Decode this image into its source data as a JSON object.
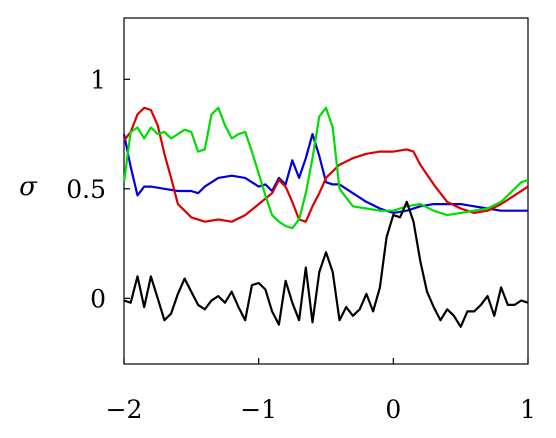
{
  "chart_data": {
    "type": "line",
    "title": "",
    "xlabel": "",
    "ylabel": "σ",
    "xlim": [
      -2,
      1
    ],
    "ylim": [
      -0.3,
      1.28
    ],
    "xticks": [
      -2,
      -1,
      0,
      1
    ],
    "xtick_labels": [
      "−2",
      "−1",
      "0",
      "1"
    ],
    "yticks": [
      0,
      0.5,
      1
    ],
    "ytick_labels": [
      "0",
      "0.5",
      "1"
    ],
    "grid": false,
    "legend": "none",
    "series": [
      {
        "color": "#0000dd",
        "x": [
          -2.0,
          -1.95,
          -1.9,
          -1.85,
          -1.8,
          -1.7,
          -1.6,
          -1.5,
          -1.45,
          -1.4,
          -1.3,
          -1.2,
          -1.1,
          -1.0,
          -0.95,
          -0.9,
          -0.85,
          -0.8,
          -0.75,
          -0.7,
          -0.65,
          -0.6,
          -0.55,
          -0.5,
          -0.45,
          -0.4,
          -0.3,
          -0.2,
          -0.1,
          0.0,
          0.1,
          0.2,
          0.3,
          0.4,
          0.5,
          0.6,
          0.7,
          0.8,
          0.9,
          1.0
        ],
        "y": [
          0.75,
          0.6,
          0.47,
          0.51,
          0.51,
          0.5,
          0.49,
          0.49,
          0.48,
          0.51,
          0.55,
          0.56,
          0.55,
          0.51,
          0.52,
          0.49,
          0.55,
          0.52,
          0.63,
          0.55,
          0.64,
          0.75,
          0.65,
          0.53,
          0.52,
          0.52,
          0.48,
          0.44,
          0.41,
          0.39,
          0.4,
          0.42,
          0.43,
          0.43,
          0.43,
          0.42,
          0.41,
          0.4,
          0.4,
          0.4
        ]
      },
      {
        "color": "#dd0000",
        "x": [
          -2.0,
          -1.95,
          -1.9,
          -1.85,
          -1.8,
          -1.75,
          -1.7,
          -1.65,
          -1.6,
          -1.55,
          -1.5,
          -1.4,
          -1.3,
          -1.2,
          -1.1,
          -1.0,
          -0.9,
          -0.85,
          -0.8,
          -0.75,
          -0.7,
          -0.65,
          -0.6,
          -0.55,
          -0.5,
          -0.4,
          -0.3,
          -0.2,
          -0.1,
          0.0,
          0.1,
          0.15,
          0.2,
          0.3,
          0.4,
          0.5,
          0.6,
          0.7,
          0.8,
          0.9,
          1.0
        ],
        "y": [
          0.72,
          0.76,
          0.84,
          0.87,
          0.86,
          0.79,
          0.66,
          0.55,
          0.43,
          0.4,
          0.37,
          0.35,
          0.36,
          0.35,
          0.38,
          0.43,
          0.48,
          0.54,
          0.51,
          0.44,
          0.36,
          0.35,
          0.42,
          0.48,
          0.55,
          0.61,
          0.64,
          0.66,
          0.67,
          0.67,
          0.68,
          0.67,
          0.61,
          0.52,
          0.44,
          0.41,
          0.39,
          0.4,
          0.43,
          0.47,
          0.51
        ]
      },
      {
        "color": "#00dd00",
        "x": [
          -2.0,
          -1.95,
          -1.9,
          -1.85,
          -1.8,
          -1.75,
          -1.7,
          -1.65,
          -1.6,
          -1.55,
          -1.5,
          -1.45,
          -1.4,
          -1.35,
          -1.3,
          -1.25,
          -1.2,
          -1.15,
          -1.1,
          -1.05,
          -1.0,
          -0.95,
          -0.9,
          -0.85,
          -0.8,
          -0.75,
          -0.7,
          -0.65,
          -0.6,
          -0.55,
          -0.5,
          -0.45,
          -0.4,
          -0.3,
          -0.2,
          -0.1,
          0.0,
          0.1,
          0.2,
          0.3,
          0.35,
          0.4,
          0.5,
          0.6,
          0.7,
          0.8,
          0.9,
          0.95,
          1.0
        ],
        "y": [
          0.53,
          0.76,
          0.78,
          0.73,
          0.78,
          0.75,
          0.76,
          0.73,
          0.75,
          0.77,
          0.76,
          0.67,
          0.68,
          0.84,
          0.87,
          0.79,
          0.73,
          0.75,
          0.76,
          0.67,
          0.57,
          0.47,
          0.38,
          0.35,
          0.33,
          0.32,
          0.36,
          0.48,
          0.64,
          0.83,
          0.87,
          0.78,
          0.5,
          0.42,
          0.41,
          0.4,
          0.4,
          0.42,
          0.43,
          0.4,
          0.39,
          0.38,
          0.39,
          0.4,
          0.41,
          0.44,
          0.5,
          0.53,
          0.54
        ]
      },
      {
        "color": "#000000",
        "x": [
          -2.0,
          -1.95,
          -1.9,
          -1.85,
          -1.8,
          -1.75,
          -1.7,
          -1.65,
          -1.6,
          -1.55,
          -1.5,
          -1.45,
          -1.4,
          -1.35,
          -1.3,
          -1.25,
          -1.2,
          -1.15,
          -1.1,
          -1.05,
          -1.0,
          -0.95,
          -0.9,
          -0.85,
          -0.8,
          -0.75,
          -0.7,
          -0.65,
          -0.6,
          -0.55,
          -0.5,
          -0.45,
          -0.4,
          -0.35,
          -0.3,
          -0.25,
          -0.2,
          -0.15,
          -0.1,
          -0.05,
          0.0,
          0.05,
          0.1,
          0.15,
          0.2,
          0.25,
          0.3,
          0.35,
          0.4,
          0.45,
          0.5,
          0.55,
          0.6,
          0.65,
          0.7,
          0.75,
          0.8,
          0.85,
          0.9,
          0.95,
          1.0
        ],
        "y": [
          -0.01,
          -0.02,
          0.1,
          -0.04,
          0.1,
          0.0,
          -0.1,
          -0.07,
          0.02,
          0.09,
          0.03,
          -0.03,
          -0.05,
          -0.01,
          0.01,
          -0.02,
          0.03,
          -0.04,
          -0.1,
          0.06,
          0.07,
          0.04,
          -0.06,
          -0.12,
          0.08,
          -0.02,
          -0.1,
          0.14,
          -0.11,
          0.12,
          0.21,
          0.12,
          -0.1,
          -0.04,
          -0.08,
          -0.05,
          0.02,
          -0.06,
          0.05,
          0.28,
          0.38,
          0.37,
          0.44,
          0.35,
          0.17,
          0.03,
          -0.04,
          -0.1,
          -0.05,
          -0.08,
          -0.13,
          -0.06,
          -0.06,
          -0.03,
          0.01,
          -0.08,
          0.05,
          -0.03,
          -0.03,
          -0.01,
          -0.02
        ]
      }
    ]
  }
}
